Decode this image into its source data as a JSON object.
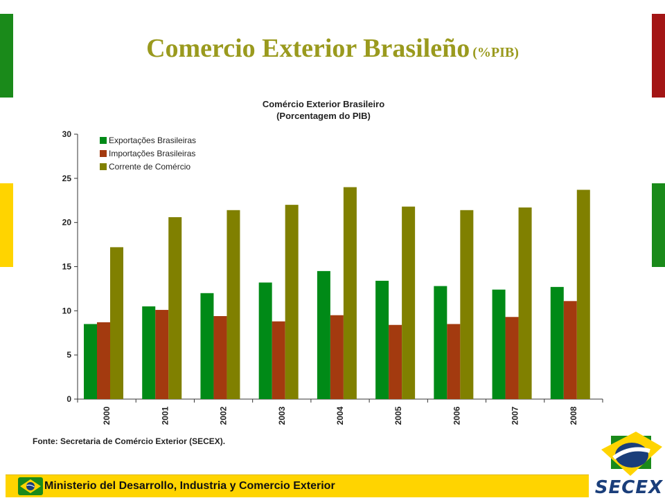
{
  "slide": {
    "title": "Comercio Exterior Brasileño",
    "title_unit": "(%PIB)",
    "footer_text": "Ministerio del Desarrollo, Industria y Comercio Exterior",
    "logo_text": "SECEX"
  },
  "colors": {
    "green": "#008a17",
    "red": "#a33a0f",
    "olive": "#808000",
    "bar_green": "#1a8a1a",
    "bar_red": "#a31515",
    "bar_yellow": "#ffd400",
    "title": "#9a9a1e"
  },
  "chart_data": {
    "type": "bar",
    "title": "Comércio Exterior Brasileiro",
    "subtitle": "(Porcentagem do PIB)",
    "categories": [
      "2000",
      "2001",
      "2002",
      "2003",
      "2004",
      "2005",
      "2006",
      "2007",
      "2008"
    ],
    "series": [
      {
        "name": "Exportações Brasileiras",
        "color": "#008a17",
        "values": [
          8.5,
          10.5,
          12.0,
          13.2,
          14.5,
          13.4,
          12.8,
          12.4,
          12.7
        ]
      },
      {
        "name": "Importações Brasileiras",
        "color": "#a33a0f",
        "values": [
          8.7,
          10.1,
          9.4,
          8.8,
          9.5,
          8.4,
          8.5,
          9.3,
          11.1
        ]
      },
      {
        "name": "Corrente de Comércio",
        "color": "#808000",
        "values": [
          17.2,
          20.6,
          21.4,
          22.0,
          24.0,
          21.8,
          21.4,
          21.7,
          23.7
        ]
      }
    ],
    "ylim": [
      0,
      30
    ],
    "yticks": [
      0,
      5,
      10,
      15,
      20,
      25,
      30
    ],
    "legend_position": "top-left",
    "grid": false,
    "source": "Fonte: Secretaria de Comércio Exterior (SECEX)."
  }
}
